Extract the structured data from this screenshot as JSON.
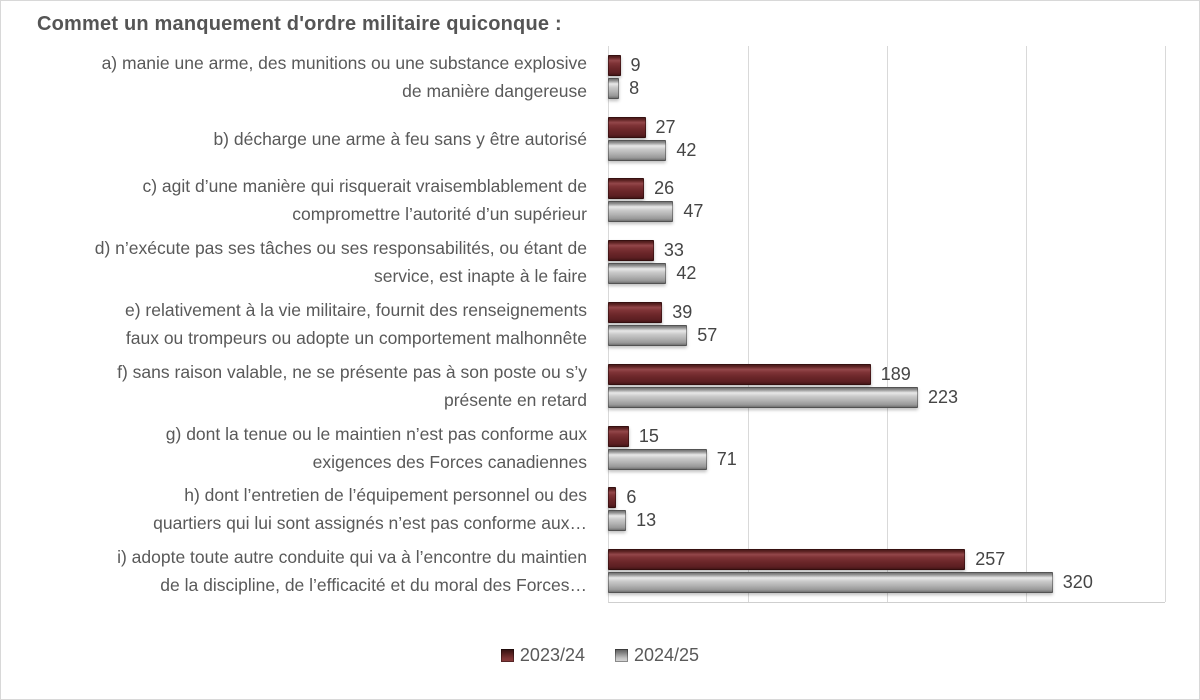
{
  "chart_data": {
    "type": "bar",
    "orientation": "horizontal",
    "title": "Commet un manquement d'ordre militaire quiconque :",
    "categories": [
      "a) manie une arme, des munitions ou une substance explosive de manière dangereuse",
      "b) décharge une arme à feu sans y être autorisé",
      "c) agit d’une manière qui risquerait vraisemblablement de compromettre l’autorité d’un supérieur",
      "d) n’exécute pas ses tâches ou ses responsabilités, ou étant de service, est inapte à le faire",
      "e) relativement à la vie militaire, fournit des renseignements faux ou trompeurs ou adopte un comportement malhonnête",
      "f) sans raison valable, ne se présente pas à son poste ou s’y présente en retard",
      "g) dont la tenue ou le maintien n’est pas conforme aux exigences des Forces canadiennes",
      "h) dont l’entretien de l’équipement personnel ou des quartiers qui lui sont assignés n’est pas conforme aux…",
      "i) adopte toute autre conduite qui va à l’encontre du maintien de la discipline, de l’efficacité et du moral des Forces…"
    ],
    "categories_lines": [
      [
        "a) manie une arme, des munitions ou une substance explosive",
        "de manière dangereuse"
      ],
      [
        "b) décharge une arme à feu sans y être autorisé"
      ],
      [
        "c) agit d’une manière qui risquerait vraisemblablement de",
        "compromettre l’autorité d’un supérieur"
      ],
      [
        "d) n’exécute pas ses tâches ou ses responsabilités, ou étant de",
        "service, est inapte à le faire"
      ],
      [
        "e) relativement à la vie militaire, fournit des renseignements",
        "faux ou trompeurs ou adopte un comportement malhonnête"
      ],
      [
        "f) sans raison valable, ne se présente pas à son poste ou s’y",
        "présente en retard"
      ],
      [
        "g) dont la tenue ou le maintien n’est pas conforme aux",
        "exigences des Forces canadiennes"
      ],
      [
        "h) dont l’entretien de l’équipement personnel ou des",
        "quartiers qui lui sont assignés n’est pas conforme aux…"
      ],
      [
        "i) adopte toute autre conduite qui va à l’encontre du maintien",
        "de la discipline, de l’efficacité et du moral des Forces…"
      ]
    ],
    "series": [
      {
        "name": "2023/24",
        "color": "#6E2A2B",
        "values": [
          9,
          27,
          26,
          33,
          39,
          189,
          15,
          6,
          257
        ]
      },
      {
        "name": "2024/25",
        "color": "#A6A6A6",
        "values": [
          8,
          42,
          47,
          42,
          57,
          223,
          71,
          13,
          320
        ]
      }
    ],
    "xlabel": "",
    "ylabel": "",
    "xlim": [
      0,
      400
    ],
    "x_gridlines": [
      100,
      200,
      300,
      400
    ],
    "grid": true,
    "data_labels": true,
    "legend_position": "bottom"
  },
  "colors": {
    "series1": "#6E2A2B",
    "series2": "#A6A6A6",
    "gridline": "#D9D9D9",
    "label_text": "#595959",
    "title_text": "#555555",
    "value_text": "#454545"
  }
}
